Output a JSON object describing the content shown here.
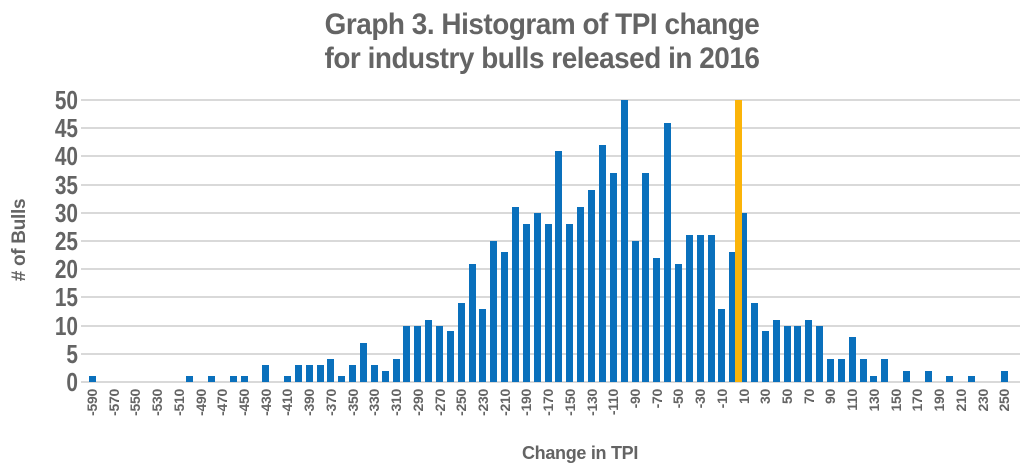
{
  "chart_data": {
    "type": "bar",
    "title_lines": [
      "Graph 3. Histogram of TPI change",
      "for industry bulls released in 2016"
    ],
    "xlabel": "Change in TPI",
    "ylabel": "# of Bulls",
    "ylim": [
      0,
      50
    ],
    "yticks": [
      0,
      5,
      10,
      15,
      20,
      25,
      30,
      35,
      40,
      45,
      50
    ],
    "grid": "horizontal",
    "legend": "none",
    "categories": [
      -590,
      -580,
      -570,
      -560,
      -550,
      -540,
      -530,
      -520,
      -510,
      -500,
      -490,
      -480,
      -470,
      -460,
      -450,
      -440,
      -430,
      -420,
      -410,
      -400,
      -390,
      -380,
      -370,
      -360,
      -350,
      -340,
      -330,
      -320,
      -310,
      -300,
      -290,
      -280,
      -270,
      -260,
      -250,
      -240,
      -230,
      -220,
      -210,
      -200,
      -190,
      -180,
      -170,
      -160,
      -150,
      -140,
      -130,
      -120,
      -110,
      -100,
      -90,
      -80,
      -70,
      -60,
      -50,
      -40,
      -30,
      -20,
      -10,
      0,
      10,
      20,
      30,
      40,
      50,
      60,
      70,
      80,
      90,
      100,
      110,
      120,
      130,
      140,
      150,
      160,
      170,
      180,
      190,
      200,
      210,
      220,
      230,
      240,
      250
    ],
    "values": [
      1,
      0,
      0,
      0,
      0,
      0,
      0,
      0,
      0,
      1,
      0,
      1,
      0,
      1,
      1,
      0,
      3,
      0,
      1,
      3,
      3,
      3,
      4,
      1,
      3,
      7,
      3,
      2,
      4,
      10,
      10,
      11,
      10,
      9,
      14,
      21,
      13,
      25,
      23,
      31,
      28,
      30,
      28,
      41,
      28,
      31,
      34,
      42,
      37,
      50,
      25,
      37,
      22,
      46,
      21,
      26,
      26,
      26,
      13,
      23,
      30,
      14,
      9,
      11,
      10,
      10,
      11,
      10,
      4,
      4,
      8,
      4,
      1,
      4,
      0,
      2,
      0,
      2,
      0,
      1,
      0,
      1,
      0,
      0,
      2
    ],
    "x_tick_labels": [
      "-590",
      "-570",
      "-550",
      "-530",
      "-510",
      "-490",
      "-470",
      "-450",
      "-430",
      "-410",
      "-390",
      "-370",
      "-350",
      "-330",
      "-310",
      "-290",
      "-270",
      "-250",
      "-230",
      "-210",
      "-190",
      "-170",
      "-150",
      "-130",
      "-110",
      "-90",
      "-70",
      "-50",
      "-30",
      "-10",
      "10",
      "30",
      "50",
      "70",
      "90",
      "110",
      "130",
      "150",
      "170",
      "190",
      "210",
      "230",
      "250"
    ],
    "x_labeled_every": 2,
    "marker": {
      "after_category": 0,
      "value": 50,
      "color": "#fbb409"
    },
    "colors": {
      "bar": "#0a70bc",
      "marker": "#fbb409",
      "grid": "#d9d9d9",
      "text": "#646464",
      "background": "#ffffff"
    }
  }
}
